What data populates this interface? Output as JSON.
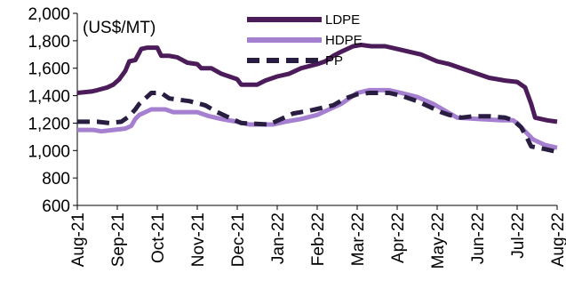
{
  "chart_data": {
    "type": "line",
    "unit_label": "(US$/MT)",
    "ylim": [
      600,
      2000
    ],
    "y_ticks": [
      "2,000",
      "1,800",
      "1,600",
      "1,400",
      "1,200",
      "1,000",
      "800",
      "600"
    ],
    "x_ticks": [
      "Aug-21",
      "Sep-21",
      "Oct-21",
      "Nov-21",
      "Dec-21",
      "Jan-22",
      "Feb-22",
      "Mar-22",
      "Apr-22",
      "May-22",
      "Jun-22",
      "Jul-22",
      "Aug-22"
    ],
    "grid": false,
    "legend_position": "top-center",
    "series": [
      {
        "name": "LDPE",
        "color": "#4b1b5a",
        "dash": "solid",
        "points": [
          [
            0,
            1420
          ],
          [
            0.35,
            1430
          ],
          [
            0.5,
            1440
          ],
          [
            0.75,
            1460
          ],
          [
            0.9,
            1480
          ],
          [
            1.05,
            1520
          ],
          [
            1.2,
            1580
          ],
          [
            1.3,
            1650
          ],
          [
            1.45,
            1660
          ],
          [
            1.6,
            1740
          ],
          [
            1.75,
            1750
          ],
          [
            2.0,
            1750
          ],
          [
            2.1,
            1690
          ],
          [
            2.3,
            1690
          ],
          [
            2.5,
            1680
          ],
          [
            2.75,
            1640
          ],
          [
            3.0,
            1630
          ],
          [
            3.1,
            1600
          ],
          [
            3.35,
            1600
          ],
          [
            3.6,
            1560
          ],
          [
            3.8,
            1540
          ],
          [
            4.0,
            1520
          ],
          [
            4.1,
            1480
          ],
          [
            4.5,
            1480
          ],
          [
            4.7,
            1510
          ],
          [
            5.0,
            1540
          ],
          [
            5.3,
            1560
          ],
          [
            5.6,
            1600
          ],
          [
            6.0,
            1630
          ],
          [
            6.2,
            1650
          ],
          [
            6.4,
            1690
          ],
          [
            6.6,
            1720
          ],
          [
            6.9,
            1760
          ],
          [
            7.1,
            1770
          ],
          [
            7.35,
            1760
          ],
          [
            7.7,
            1760
          ],
          [
            8.0,
            1740
          ],
          [
            8.3,
            1720
          ],
          [
            8.6,
            1700
          ],
          [
            9.0,
            1650
          ],
          [
            9.3,
            1630
          ],
          [
            9.6,
            1600
          ],
          [
            10.0,
            1560
          ],
          [
            10.3,
            1530
          ],
          [
            10.7,
            1510
          ],
          [
            11.0,
            1500
          ],
          [
            11.2,
            1460
          ],
          [
            11.35,
            1340
          ],
          [
            11.45,
            1240
          ],
          [
            11.75,
            1220
          ],
          [
            12.0,
            1210
          ]
        ]
      },
      {
        "name": "HDPE",
        "color": "#a57fd0",
        "dash": "solid",
        "points": [
          [
            0,
            1150
          ],
          [
            0.4,
            1150
          ],
          [
            0.6,
            1140
          ],
          [
            0.9,
            1150
          ],
          [
            1.2,
            1160
          ],
          [
            1.35,
            1180
          ],
          [
            1.45,
            1230
          ],
          [
            1.55,
            1260
          ],
          [
            1.7,
            1280
          ],
          [
            1.85,
            1300
          ],
          [
            2.2,
            1300
          ],
          [
            2.4,
            1280
          ],
          [
            3.0,
            1280
          ],
          [
            3.3,
            1250
          ],
          [
            3.6,
            1230
          ],
          [
            4.0,
            1210
          ],
          [
            4.3,
            1190
          ],
          [
            4.9,
            1190
          ],
          [
            5.2,
            1210
          ],
          [
            5.6,
            1230
          ],
          [
            6.0,
            1260
          ],
          [
            6.3,
            1300
          ],
          [
            6.6,
            1340
          ],
          [
            7.0,
            1420
          ],
          [
            7.3,
            1440
          ],
          [
            7.8,
            1440
          ],
          [
            8.1,
            1420
          ],
          [
            8.5,
            1390
          ],
          [
            8.9,
            1340
          ],
          [
            9.2,
            1290
          ],
          [
            9.5,
            1240
          ],
          [
            10.0,
            1230
          ],
          [
            10.6,
            1220
          ],
          [
            10.9,
            1220
          ],
          [
            11.0,
            1200
          ],
          [
            11.2,
            1140
          ],
          [
            11.4,
            1080
          ],
          [
            11.7,
            1040
          ],
          [
            12.0,
            1020
          ]
        ]
      },
      {
        "name": "PP",
        "color": "#2a1d42",
        "dash": "dashed",
        "points": [
          [
            0,
            1210
          ],
          [
            0.5,
            1210
          ],
          [
            0.8,
            1200
          ],
          [
            1.1,
            1210
          ],
          [
            1.3,
            1250
          ],
          [
            1.45,
            1300
          ],
          [
            1.55,
            1340
          ],
          [
            1.7,
            1380
          ],
          [
            1.85,
            1420
          ],
          [
            2.1,
            1420
          ],
          [
            2.3,
            1380
          ],
          [
            2.8,
            1360
          ],
          [
            3.2,
            1330
          ],
          [
            3.5,
            1280
          ],
          [
            3.8,
            1240
          ],
          [
            4.1,
            1200
          ],
          [
            4.8,
            1190
          ],
          [
            5.1,
            1230
          ],
          [
            5.4,
            1270
          ],
          [
            5.8,
            1290
          ],
          [
            6.1,
            1310
          ],
          [
            6.4,
            1330
          ],
          [
            6.7,
            1380
          ],
          [
            7.0,
            1410
          ],
          [
            7.3,
            1420
          ],
          [
            7.8,
            1420
          ],
          [
            8.1,
            1400
          ],
          [
            8.5,
            1360
          ],
          [
            8.8,
            1320
          ],
          [
            9.1,
            1280
          ],
          [
            9.3,
            1260
          ],
          [
            9.6,
            1240
          ],
          [
            9.9,
            1250
          ],
          [
            10.3,
            1250
          ],
          [
            10.7,
            1240
          ],
          [
            10.9,
            1220
          ],
          [
            11.1,
            1170
          ],
          [
            11.25,
            1090
          ],
          [
            11.35,
            1030
          ],
          [
            11.7,
            1010
          ],
          [
            12.0,
            990
          ]
        ]
      }
    ]
  }
}
